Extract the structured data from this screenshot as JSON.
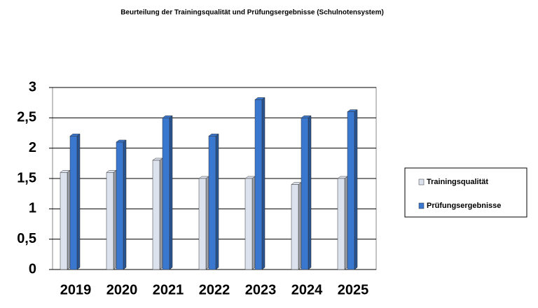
{
  "chart_data": {
    "type": "bar",
    "title": "Beurteilung der Trainingsqualität und Prüfungsergebnisse (Schulnotensystem)",
    "categories": [
      "2019",
      "2020",
      "2021",
      "2022",
      "2023",
      "2024",
      "2025"
    ],
    "series": [
      {
        "name": "Trainingsqualität",
        "color": "#dde3ee",
        "values": [
          1.6,
          1.6,
          1.8,
          1.5,
          1.5,
          1.4,
          1.5
        ]
      },
      {
        "name": "Prüfungsergebnisse",
        "color": "#3a78d0",
        "values": [
          2.2,
          2.1,
          2.5,
          2.2,
          2.8,
          2.5,
          2.6
        ]
      }
    ],
    "ylim": [
      0,
      3
    ],
    "yticks": [
      0,
      {
        "value": 0.5,
        "label": "0,5"
      },
      1,
      {
        "value": 1.5,
        "label": "1,5"
      },
      2,
      {
        "value": 2.5,
        "label": "2,5"
      },
      3
    ],
    "grid": true,
    "legend": "right"
  }
}
